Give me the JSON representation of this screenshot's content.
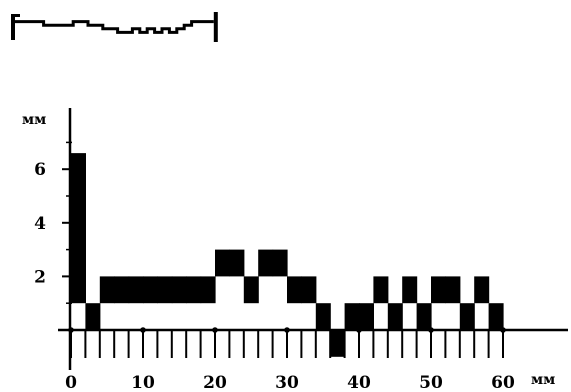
{
  "chart_data": {
    "type": "bar",
    "title": "",
    "xlabel": "мм",
    "ylabel": "мм",
    "xlim": [
      0,
      60
    ],
    "ylim": [
      0,
      7
    ],
    "x_ticks": [
      0,
      10,
      20,
      30,
      40,
      50,
      60
    ],
    "y_ticks": [
      2,
      4,
      6
    ],
    "x_tick_labels": [
      "0",
      "10",
      "20",
      "30",
      "40",
      "50",
      "60"
    ],
    "y_tick_labels": [
      "2",
      "4",
      "6"
    ],
    "bar_width": 2,
    "bar_color": "#000000",
    "bars": [
      {
        "x": 0,
        "height": 6.6
      },
      {
        "x": 2,
        "height": 1
      },
      {
        "x": 4,
        "height": 2
      },
      {
        "x": 6,
        "height": 2
      },
      {
        "x": 8,
        "height": 2
      },
      {
        "x": 10,
        "height": 2
      },
      {
        "x": 12,
        "height": 2
      },
      {
        "x": 14,
        "height": 2
      },
      {
        "x": 16,
        "height": 2
      },
      {
        "x": 18,
        "height": 2
      },
      {
        "x": 20,
        "height": 3
      },
      {
        "x": 22,
        "height": 3
      },
      {
        "x": 24,
        "height": 2
      },
      {
        "x": 26,
        "height": 3
      },
      {
        "x": 28,
        "height": 3
      },
      {
        "x": 30,
        "height": 2
      },
      {
        "x": 32,
        "height": 2
      },
      {
        "x": 34,
        "height": 1
      },
      {
        "x": 36,
        "height": 0
      },
      {
        "x": 38,
        "height": 1
      },
      {
        "x": 40,
        "height": 1
      },
      {
        "x": 42,
        "height": 2
      },
      {
        "x": 44,
        "height": 1
      },
      {
        "x": 46,
        "height": 2
      },
      {
        "x": 48,
        "height": 1
      },
      {
        "x": 50,
        "height": 2
      },
      {
        "x": 52,
        "height": 2
      },
      {
        "x": 54,
        "height": 1
      },
      {
        "x": 56,
        "height": 2
      },
      {
        "x": 58,
        "height": 1
      }
    ]
  },
  "waveform": {
    "levels": [
      4,
      4,
      4,
      4,
      3,
      3,
      3,
      3,
      4,
      4,
      3,
      3,
      2,
      2,
      1,
      1,
      2,
      1,
      2,
      1,
      2,
      1,
      2,
      3,
      4,
      4,
      4
    ],
    "max_level": 5
  }
}
